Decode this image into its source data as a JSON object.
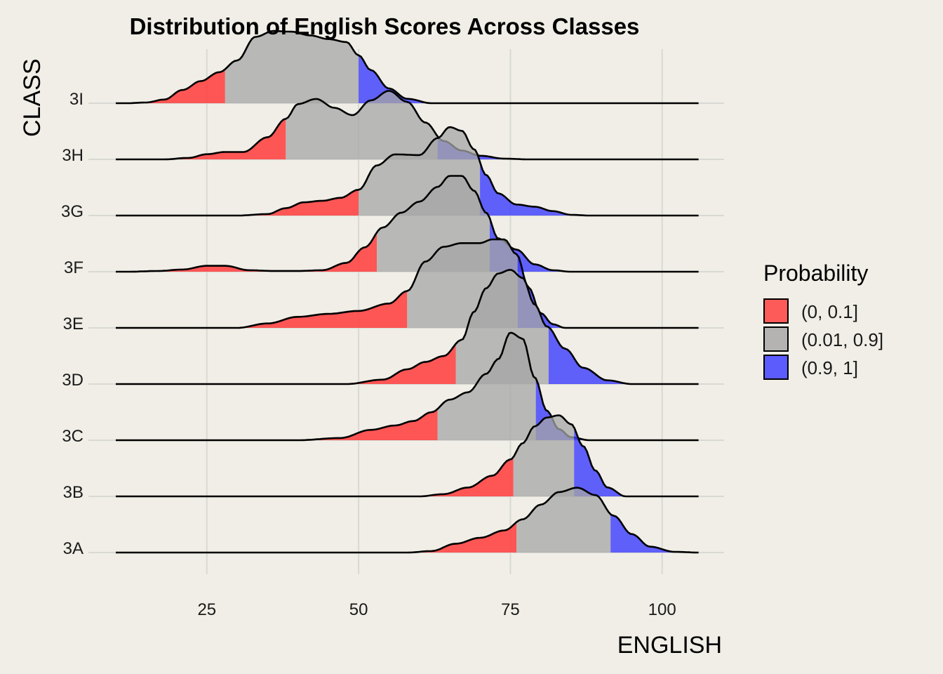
{
  "chart_data": {
    "type": "ridgeline",
    "title": "Distribution of English Scores Across Classes",
    "xlabel": "ENGLISH",
    "ylabel": "CLASS",
    "xlim": [
      10,
      106
    ],
    "x_ticks": [
      25,
      50,
      75,
      100
    ],
    "x_tick_labels": [
      "25",
      "50",
      "75",
      "100"
    ],
    "grid": true,
    "legend_position": "right",
    "legend": {
      "title": "Probability",
      "entries": [
        {
          "label": "(0, 0.1]",
          "color": "#ff3b3b"
        },
        {
          "label": "(0.01, 0.9]",
          "color": "#a6a6a6"
        },
        {
          "label": "(0.9, 1]",
          "color": "#3b3bff"
        }
      ]
    },
    "series": [
      {
        "name": "3A",
        "q10": 76,
        "q90": 91.5,
        "x": [
          58,
          62,
          66,
          70,
          74,
          77,
          80,
          83,
          86,
          89,
          92,
          95,
          98,
          102,
          106
        ],
        "density": [
          0,
          0.02,
          0.12,
          0.2,
          0.3,
          0.45,
          0.65,
          0.82,
          0.88,
          0.78,
          0.5,
          0.25,
          0.08,
          0.01,
          0
        ]
      },
      {
        "name": "3B",
        "q10": 75.5,
        "q90": 85.5,
        "x": [
          60,
          64,
          68,
          72,
          75,
          77,
          79,
          81,
          83,
          85,
          87,
          89,
          91,
          94
        ],
        "density": [
          0,
          0.03,
          0.12,
          0.28,
          0.5,
          0.72,
          0.95,
          1.07,
          1.1,
          0.98,
          0.68,
          0.35,
          0.12,
          0
        ]
      },
      {
        "name": "3C",
        "q10": 63,
        "q90": 79.2,
        "x": [
          40,
          47,
          52,
          56,
          59,
          62,
          65,
          68,
          71,
          73,
          75,
          77,
          79,
          81,
          83,
          85,
          88
        ],
        "density": [
          0,
          0.03,
          0.14,
          0.2,
          0.26,
          0.38,
          0.55,
          0.65,
          0.9,
          1.1,
          1.46,
          1.38,
          0.85,
          0.4,
          0.15,
          0.04,
          0
        ]
      },
      {
        "name": "3D",
        "q10": 66,
        "q90": 81.3,
        "x": [
          48,
          54,
          58,
          61,
          64,
          67,
          69,
          71,
          73,
          75,
          77,
          79,
          81,
          84,
          87,
          91,
          95
        ],
        "density": [
          0,
          0.06,
          0.2,
          0.3,
          0.38,
          0.6,
          0.98,
          1.3,
          1.5,
          1.55,
          1.44,
          1.08,
          0.78,
          0.48,
          0.22,
          0.05,
          0
        ]
      },
      {
        "name": "3E",
        "q10": 58,
        "q90": 76.2,
        "x": [
          30,
          35,
          40,
          45,
          50,
          55,
          58,
          61,
          64,
          67,
          70,
          72,
          74,
          76,
          78,
          80,
          82,
          84
        ],
        "density": [
          0,
          0.06,
          0.15,
          0.19,
          0.23,
          0.33,
          0.5,
          0.9,
          1.1,
          1.15,
          1.15,
          1.2,
          1.2,
          1.0,
          0.55,
          0.2,
          0.05,
          0
        ]
      },
      {
        "name": "3F",
        "q10": 53,
        "q90": 71.6,
        "x": [
          12,
          17,
          21,
          25,
          28,
          32,
          36,
          40,
          44,
          48,
          51,
          54,
          57,
          60,
          63,
          65,
          67,
          69,
          71,
          73,
          76,
          79,
          82,
          85
        ],
        "density": [
          0,
          0.01,
          0.03,
          0.08,
          0.08,
          0.02,
          0.01,
          0.01,
          0.02,
          0.12,
          0.33,
          0.6,
          0.8,
          0.95,
          1.15,
          1.3,
          1.3,
          1.1,
          0.8,
          0.45,
          0.3,
          0.1,
          0.02,
          0
        ]
      },
      {
        "name": "3G",
        "q10": 50,
        "q90": 70,
        "x": [
          30,
          35,
          38,
          41,
          44,
          47,
          50,
          53,
          56,
          60,
          63,
          65,
          67,
          69,
          71,
          73,
          76,
          79,
          82,
          85,
          88
        ],
        "density": [
          0,
          0.02,
          0.1,
          0.18,
          0.2,
          0.24,
          0.35,
          0.68,
          0.83,
          0.82,
          1.05,
          1.2,
          1.15,
          0.9,
          0.55,
          0.3,
          0.15,
          0.12,
          0.06,
          0.01,
          0
        ]
      },
      {
        "name": "3H",
        "q10": 38,
        "q90": 63,
        "x": [
          18,
          22,
          25,
          28,
          31,
          35,
          38,
          40,
          43,
          46,
          49,
          52,
          55,
          58,
          61,
          64,
          67,
          70,
          74,
          78
        ],
        "density": [
          0,
          0.02,
          0.07,
          0.1,
          0.1,
          0.3,
          0.55,
          0.75,
          0.82,
          0.7,
          0.6,
          0.8,
          0.93,
          0.78,
          0.5,
          0.25,
          0.12,
          0.05,
          0.01,
          0
        ]
      },
      {
        "name": "3I",
        "q10": 28,
        "q90": 50,
        "x": [
          12,
          15,
          18,
          21,
          24,
          27,
          30,
          33,
          36,
          39,
          42,
          45,
          48,
          50,
          52,
          55,
          58,
          62
        ],
        "density": [
          0,
          0.01,
          0.05,
          0.18,
          0.3,
          0.42,
          0.58,
          0.9,
          0.98,
          0.97,
          0.92,
          0.87,
          0.83,
          0.65,
          0.45,
          0.2,
          0.06,
          0
        ]
      }
    ]
  }
}
